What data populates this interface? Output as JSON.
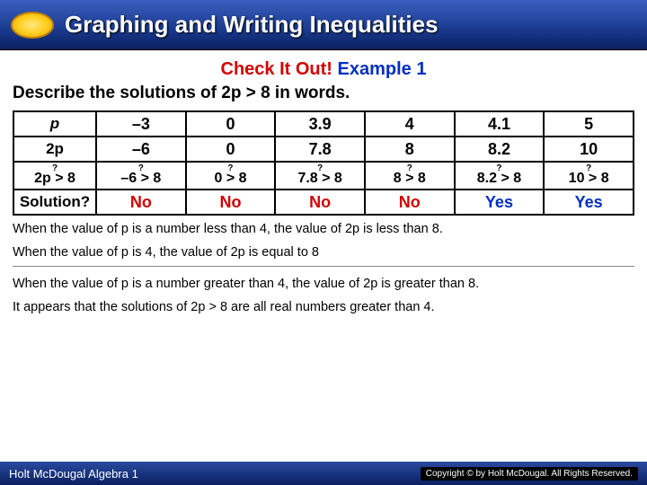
{
  "header": {
    "title": "Graphing and Writing Inequalities"
  },
  "subhead": {
    "red": "Check It Out!",
    "blue": "Example 1"
  },
  "prompt": "Describe the solutions of 2p > 8 in words.",
  "table": {
    "row_headers": [
      "p",
      "2p",
      "2p > 8",
      "Solution?"
    ],
    "cols": [
      {
        "p": "–3",
        "tp": "–6",
        "cmp": "–6 > 8",
        "sol": "No",
        "sol_class": "no"
      },
      {
        "p": "0",
        "tp": "0",
        "cmp": "0 > 8",
        "sol": "No",
        "sol_class": "no"
      },
      {
        "p": "3.9",
        "tp": "7.8",
        "cmp": "7.8 > 8",
        "sol": "No",
        "sol_class": "no"
      },
      {
        "p": "4",
        "tp": "8",
        "cmp": "8 > 8",
        "sol": "No",
        "sol_class": "no"
      },
      {
        "p": "4.1",
        "tp": "8.2",
        "cmp": "8.2 > 8",
        "sol": "Yes",
        "sol_class": "yes"
      },
      {
        "p": "5",
        "tp": "10",
        "cmp": "10 > 8",
        "sol": "Yes",
        "sol_class": "yes"
      }
    ],
    "q_mark": "?"
  },
  "explain": {
    "p1": "When the value of p is a number less than 4, the value of 2p is less than 8.",
    "p2": "When the value of p is 4, the value of 2p is equal to 8",
    "p3": "When the value of p is a number greater than 4, the value of 2p is greater than 8.",
    "p4": "It appears that the solutions of 2p > 8 are all real numbers greater than 4."
  },
  "footer": {
    "left": "Holt McDougal Algebra 1",
    "right": "Copyright © by Holt McDougal. All Rights Reserved."
  },
  "colors": {
    "header_bg_top": "#3a5fbf",
    "header_bg_bottom": "#0a2060",
    "red": "#d00000",
    "blue": "#0030c0",
    "border": "#000000",
    "bg": "#ffffff"
  },
  "fonts": {
    "title_size": 26,
    "subhead_size": 20,
    "prompt_size": 19,
    "cell_size": 18,
    "explain_size": 14.5,
    "footer_size": 13
  }
}
